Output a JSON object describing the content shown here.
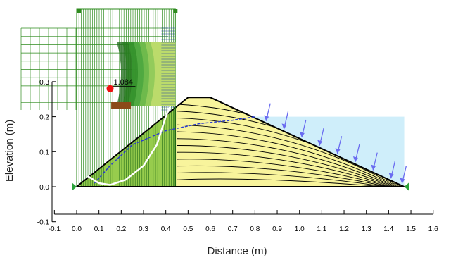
{
  "chart_data": {
    "type": "slope-stability-section",
    "xlabel": "Distance (m)",
    "ylabel": "Elevation (m)",
    "xlim": [
      -0.1,
      1.6
    ],
    "ylim": [
      -0.1,
      0.3
    ],
    "x_ticks": [
      -0.1,
      0.0,
      0.1,
      0.2,
      0.3,
      0.4,
      0.5,
      0.6,
      0.7,
      0.8,
      0.9,
      1.0,
      1.1,
      1.2,
      1.3,
      1.4,
      1.5,
      1.6
    ],
    "y_ticks": [
      -0.1,
      0.0,
      0.1,
      0.2,
      0.3
    ],
    "factor_of_safety": "1.084",
    "critical_center": {
      "x": 0.15,
      "y": 0.27
    },
    "dam_outline": [
      [
        0.0,
        0.0
      ],
      [
        0.5,
        0.255
      ],
      [
        0.6,
        0.255
      ],
      [
        1.47,
        0.0
      ]
    ],
    "reservoir": {
      "water_level": 0.2,
      "x_start": 0.78,
      "x_end": 1.47
    },
    "slip_surface": [
      [
        0.05,
        0.03
      ],
      [
        0.1,
        0.01
      ],
      [
        0.15,
        0.005
      ],
      [
        0.22,
        0.02
      ],
      [
        0.3,
        0.06
      ],
      [
        0.36,
        0.12
      ],
      [
        0.4,
        0.2
      ],
      [
        0.42,
        0.23
      ]
    ],
    "phreatic_line": [
      [
        0.08,
        0.01
      ],
      [
        0.15,
        0.06
      ],
      [
        0.25,
        0.12
      ],
      [
        0.4,
        0.16
      ],
      [
        0.55,
        0.18
      ],
      [
        0.7,
        0.19
      ],
      [
        0.8,
        0.2
      ]
    ],
    "colors": {
      "dam_fill": "#f8f49c",
      "slip_zone_fill": "#86c440",
      "grid_green": "#2e8b1e",
      "reservoir": "#cfeefa",
      "water_arrows": "#6a6cf0",
      "phreatic": "#2a3ad0",
      "slip_surface": "#ffffff",
      "fs_marker": "#ee1111",
      "support": "#2aa33a"
    }
  }
}
